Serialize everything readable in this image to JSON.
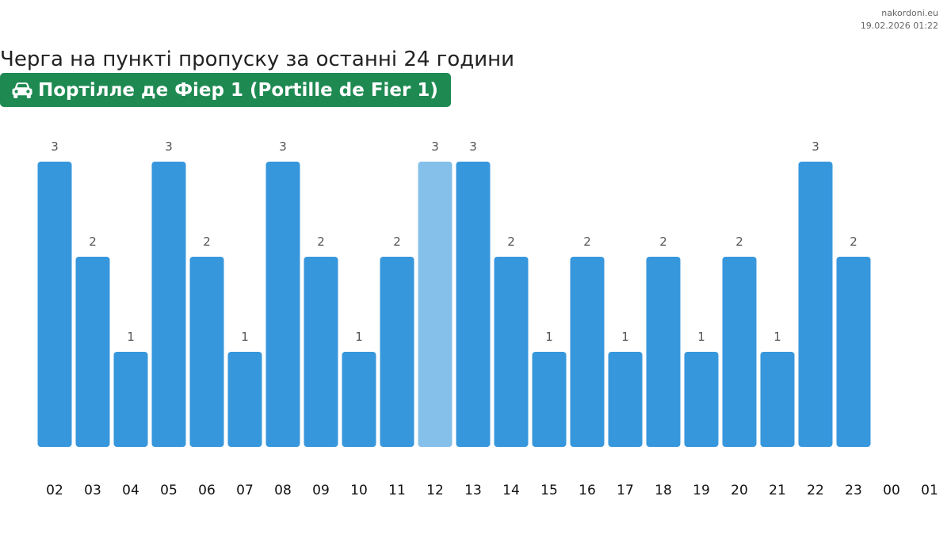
{
  "source": {
    "site": "nakordoni.eu",
    "timestamp": "19.02.2026 01:22"
  },
  "header": {
    "title": "Черга на пункті пропуску за останні 24 години",
    "crossing_name": "Портілле де Фіер 1 (Portille de Fier 1)",
    "crossing_icon": "car-icon",
    "badge_color": "#1e8a52"
  },
  "colors": {
    "bar": "#3797dc",
    "bar_highlight": "#85c0ea",
    "value_label": "#555555",
    "tick_label": "#111111"
  },
  "chart_data": {
    "type": "bar",
    "title": "",
    "xlabel": "",
    "ylabel": "",
    "categories": [
      "02",
      "03",
      "04",
      "05",
      "06",
      "07",
      "08",
      "09",
      "10",
      "11",
      "12",
      "13",
      "14",
      "15",
      "16",
      "17",
      "18",
      "19",
      "20",
      "21",
      "22",
      "23",
      "00",
      "01"
    ],
    "values": [
      3,
      2,
      1,
      3,
      2,
      1,
      3,
      2,
      1,
      2,
      3,
      3,
      2,
      1,
      2,
      1,
      2,
      1,
      2,
      1,
      3,
      2,
      null,
      null
    ],
    "data_labels": [
      "3",
      "2",
      "1",
      "3",
      "2",
      "1",
      "3",
      "2",
      "1",
      "2",
      "3",
      "3",
      "2",
      "1",
      "2",
      "1",
      "2",
      "1",
      "2",
      "1",
      "3",
      "2",
      "",
      ""
    ],
    "highlighted_category": "12",
    "ylim": [
      0,
      3
    ],
    "grid": false,
    "legend": "none"
  }
}
